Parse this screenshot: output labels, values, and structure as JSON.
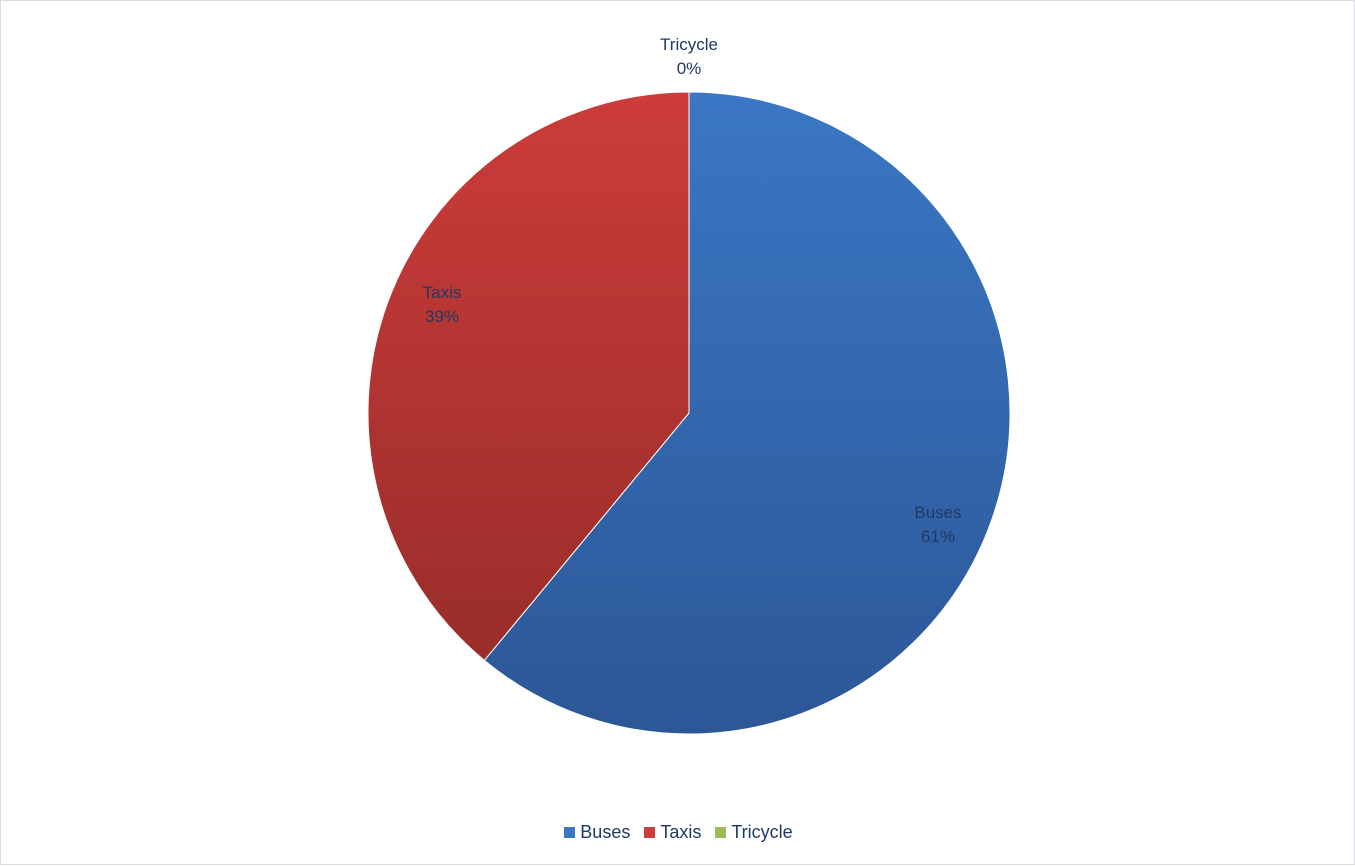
{
  "chart_data": {
    "type": "pie",
    "title": "",
    "legend_position": "bottom",
    "slices": [
      {
        "name": "Buses",
        "value": 61,
        "label": "61%",
        "color": "#3a77c4",
        "color_dark": "#2c5797"
      },
      {
        "name": "Taxis",
        "value": 39,
        "label": "39%",
        "color": "#cc3c3a",
        "color_dark": "#992d2a"
      },
      {
        "name": "Tricycle",
        "value": 0,
        "label": "0%",
        "color": "#9bbb59",
        "color_dark": "#7a9a3e"
      }
    ]
  },
  "legend": {
    "items": [
      {
        "name": "Buses",
        "color": "#3a77c4"
      },
      {
        "name": "Taxis",
        "color": "#cc3c3a"
      },
      {
        "name": "Tricycle",
        "color": "#9bbb59"
      }
    ]
  }
}
